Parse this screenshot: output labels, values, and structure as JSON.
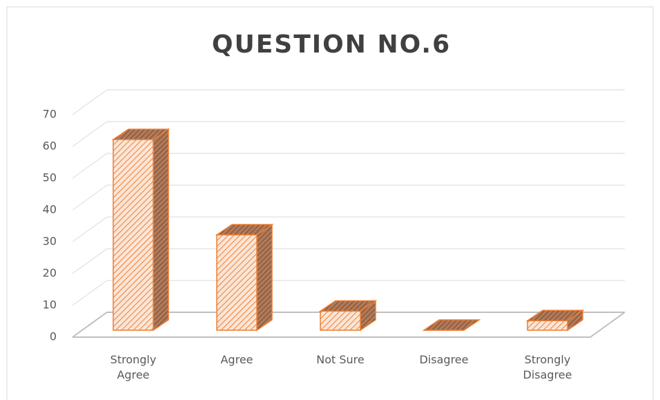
{
  "chart_data": {
    "type": "bar",
    "title": "QUESTION NO.6",
    "categories": [
      "Strongly Agree",
      "Agree",
      "Not Sure",
      "Disagree",
      "Strongly Disagree"
    ],
    "values": [
      60,
      30,
      6,
      0,
      3
    ],
    "color": "#ed7d31",
    "ylim": [
      0,
      70
    ],
    "yticks": [
      0,
      10,
      20,
      30,
      40,
      50,
      60,
      70
    ],
    "grid": true
  }
}
